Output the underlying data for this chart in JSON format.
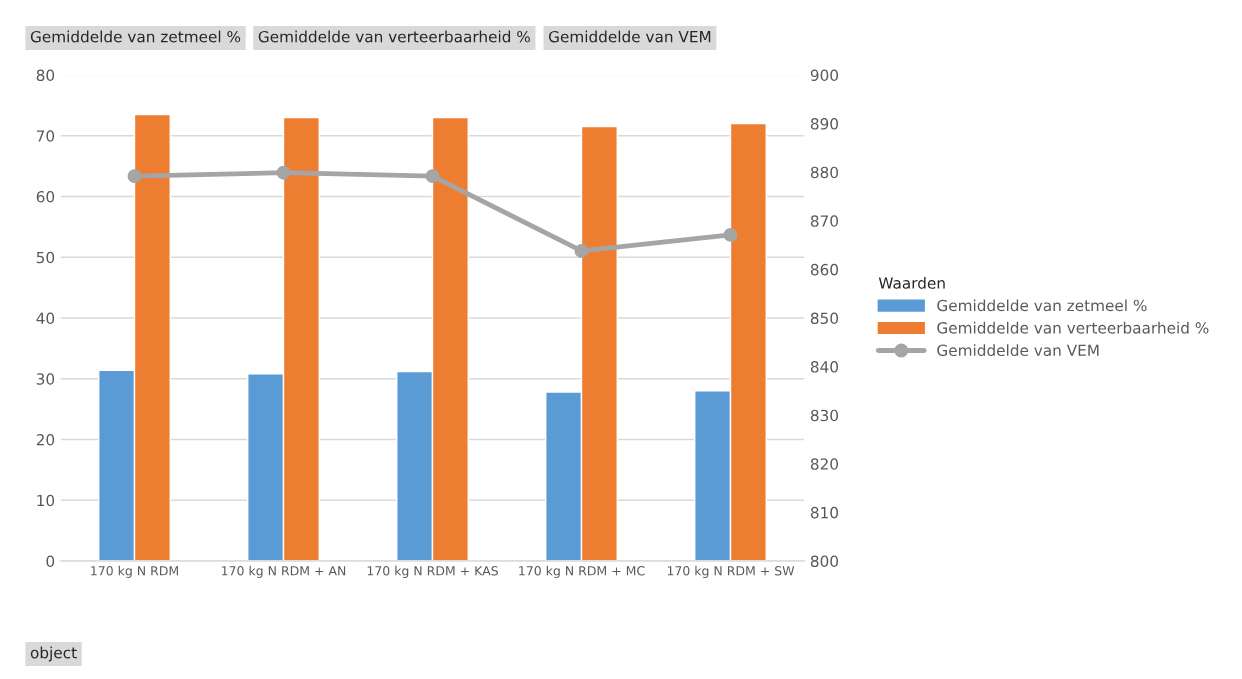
{
  "chart_data": {
    "type": "bar",
    "categories": [
      "170 kg N RDM",
      "170 kg N RDM + AN",
      "170 kg N RDM + KAS",
      "170 kg N RDM + MC",
      "170 kg N RDM + SW"
    ],
    "series": [
      {
        "name": "Gemiddelde van zetmeel %",
        "color": "#5b9bd5",
        "values": [
          31.4,
          30.8,
          31.2,
          27.8,
          28.0
        ]
      },
      {
        "name": "Gemiddelde van verteerbaarheid %",
        "color": "#ed7d31",
        "values": [
          73.5,
          73.0,
          73.0,
          71.5,
          72.0
        ]
      },
      {
        "name": "Gemiddelde van VEM",
        "type": "line",
        "axis": "y2",
        "color": "#a5a5a5",
        "marker": "circle",
        "values": [
          879.2,
          879.9,
          879.2,
          863.8,
          867.1
        ]
      }
    ],
    "ylim": [
      0,
      80
    ],
    "yticks": [
      0,
      10,
      20,
      30,
      40,
      50,
      60,
      70,
      80
    ],
    "y2lim": [
      800,
      900
    ],
    "y2ticks": [
      800,
      810,
      820,
      830,
      840,
      850,
      860,
      870,
      880,
      890,
      900
    ],
    "grid": "y",
    "legend": "right",
    "legend_title": "Waarden",
    "annotations": [
      "Gemiddelde van zetmeel %",
      "Gemiddelde van verteerbaarheid %",
      "Gemiddelde van VEM",
      "object"
    ]
  }
}
